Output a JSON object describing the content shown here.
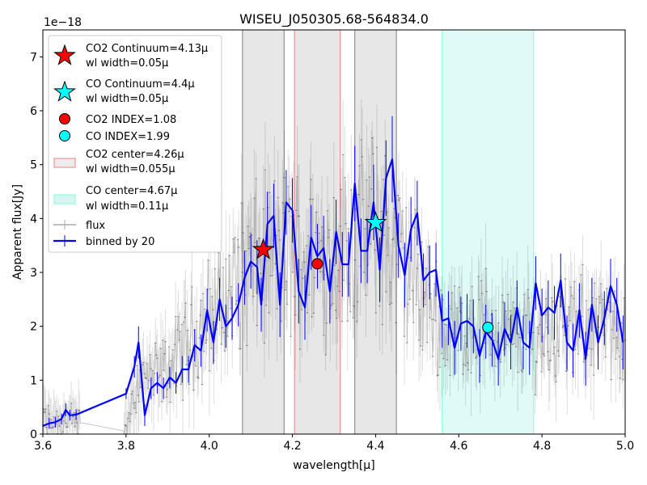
{
  "chart_data": {
    "type": "line",
    "title": "WISEU_J050305.68-564834.0",
    "xlabel": "wavelength[μ]",
    "ylabel": "Apparent flux[Jy]",
    "y_multiplier": "1e−18",
    "xlim": [
      3.6,
      5.0
    ],
    "ylim": [
      0,
      7.5
    ],
    "xticks": [
      "3.6",
      "3.8",
      "4.0",
      "4.2",
      "4.4",
      "4.6",
      "4.8",
      "5.0"
    ],
    "yticks": [
      "0",
      "1",
      "2",
      "3",
      "4",
      "5",
      "6",
      "7"
    ],
    "grid": false,
    "legend_position": "upper-left",
    "bands": [
      {
        "name": "CO2 continuum region 1",
        "x0": 4.08,
        "x1": 4.18,
        "color": "#808080"
      },
      {
        "name": "CO2 center",
        "x0": 4.205,
        "x1": 4.315,
        "color": "#f08080"
      },
      {
        "name": "CO continuum region",
        "x0": 4.35,
        "x1": 4.45,
        "color": "#808080"
      },
      {
        "name": "CO center",
        "x0": 4.56,
        "x1": 4.78,
        "color": "#7fffd4"
      }
    ],
    "markers": [
      {
        "label": "CO2 Continuum=4.13μ",
        "label2": "wl width=0.05μ",
        "shape": "star",
        "color": "#ff0000",
        "x": 4.13,
        "y": 3.42
      },
      {
        "label": "CO Continuum=4.4μ",
        "label2": "wl width=0.05μ",
        "shape": "star",
        "color": "#00ffff",
        "x": 4.4,
        "y": 3.92
      },
      {
        "label": "CO2 INDEX=1.08",
        "shape": "circle",
        "color": "#ff0000",
        "x": 4.26,
        "y": 3.16
      },
      {
        "label": "CO  INDEX=1.99",
        "shape": "circle",
        "color": "#00ffff",
        "x": 4.67,
        "y": 1.98
      }
    ],
    "legend_patches": [
      {
        "label": "CO2 center=4.26μ",
        "label2": "wl width=0.055μ",
        "color": "#f08080"
      },
      {
        "label": "CO center=4.67μ",
        "label2": "wl width=0.11μ",
        "color": "#7fffd4"
      }
    ],
    "series": [
      {
        "name": "flux",
        "color": "#808080",
        "style": "errorbar-line",
        "envelope": [
          [
            3.6,
            0.25
          ],
          [
            3.7,
            0.2
          ],
          [
            3.8,
            0.05
          ],
          [
            3.82,
            0.9
          ],
          [
            3.84,
            1.1
          ],
          [
            3.86,
            1.0
          ],
          [
            3.9,
            1.2
          ],
          [
            3.95,
            1.7
          ],
          [
            4.0,
            2.2
          ],
          [
            4.05,
            2.6
          ],
          [
            4.08,
            3.0
          ],
          [
            4.12,
            3.2
          ],
          [
            4.16,
            3.3
          ],
          [
            4.2,
            3.3
          ],
          [
            4.24,
            3.4
          ],
          [
            4.28,
            3.2
          ],
          [
            4.32,
            3.6
          ],
          [
            4.36,
            3.6
          ],
          [
            4.4,
            3.9
          ],
          [
            4.44,
            3.4
          ],
          [
            4.48,
            3.0
          ],
          [
            4.52,
            2.5
          ],
          [
            4.56,
            2.0
          ],
          [
            4.6,
            1.9
          ],
          [
            4.64,
            2.0
          ],
          [
            4.68,
            2.1
          ],
          [
            4.72,
            1.8
          ],
          [
            4.76,
            1.9
          ],
          [
            4.8,
            1.8
          ],
          [
            4.84,
            2.0
          ],
          [
            4.88,
            1.9
          ],
          [
            4.92,
            2.2
          ],
          [
            4.96,
            1.8
          ],
          [
            5.0,
            2.0
          ]
        ]
      },
      {
        "name": "binned by 20",
        "color": "#0000ff",
        "style": "line-errorbar",
        "points": [
          [
            3.6,
            0.15,
            0.1
          ],
          [
            3.615,
            0.2,
            0.1
          ],
          [
            3.63,
            0.22,
            0.1
          ],
          [
            3.645,
            0.28,
            0.1
          ],
          [
            3.655,
            0.45,
            0.12
          ],
          [
            3.665,
            0.35,
            0.1
          ],
          [
            3.68,
            0.36,
            0.1
          ],
          [
            3.8,
            0.75,
            0.1
          ],
          [
            3.82,
            1.25,
            0.2
          ],
          [
            3.83,
            1.7,
            0.3
          ],
          [
            3.845,
            0.35,
            0.2
          ],
          [
            3.86,
            0.85,
            0.2
          ],
          [
            3.875,
            0.95,
            0.2
          ],
          [
            3.89,
            0.85,
            0.2
          ],
          [
            3.905,
            1.05,
            0.2
          ],
          [
            3.92,
            0.95,
            0.2
          ],
          [
            3.935,
            1.2,
            0.25
          ],
          [
            3.95,
            1.2,
            0.25
          ],
          [
            3.965,
            1.65,
            0.3
          ],
          [
            3.98,
            1.55,
            0.3
          ],
          [
            3.995,
            2.3,
            0.4
          ],
          [
            4.01,
            1.7,
            0.4
          ],
          [
            4.025,
            2.5,
            0.4
          ],
          [
            4.04,
            2.0,
            0.4
          ],
          [
            4.055,
            2.15,
            0.4
          ],
          [
            4.07,
            2.4,
            0.4
          ],
          [
            4.085,
            2.9,
            0.5
          ],
          [
            4.1,
            3.2,
            0.5
          ],
          [
            4.115,
            3.1,
            0.5
          ],
          [
            4.125,
            2.4,
            0.5
          ],
          [
            4.14,
            3.9,
            0.6
          ],
          [
            4.155,
            4.05,
            0.6
          ],
          [
            4.17,
            2.4,
            0.6
          ],
          [
            4.185,
            4.3,
            0.6
          ],
          [
            4.2,
            4.15,
            0.6
          ],
          [
            4.215,
            2.65,
            0.6
          ],
          [
            4.23,
            2.35,
            0.6
          ],
          [
            4.245,
            3.65,
            0.6
          ],
          [
            4.26,
            3.3,
            0.6
          ],
          [
            4.275,
            3.45,
            0.6
          ],
          [
            4.29,
            2.65,
            0.6
          ],
          [
            4.305,
            3.75,
            0.6
          ],
          [
            4.32,
            3.15,
            0.6
          ],
          [
            4.335,
            3.15,
            0.6
          ],
          [
            4.35,
            4.65,
            0.7
          ],
          [
            4.365,
            3.4,
            0.6
          ],
          [
            4.38,
            3.4,
            0.6
          ],
          [
            4.395,
            4.3,
            0.7
          ],
          [
            4.41,
            3.05,
            0.6
          ],
          [
            4.425,
            4.75,
            0.7
          ],
          [
            4.44,
            5.1,
            0.8
          ],
          [
            4.455,
            3.5,
            0.6
          ],
          [
            4.47,
            2.95,
            0.6
          ],
          [
            4.485,
            3.8,
            0.6
          ],
          [
            4.5,
            4.1,
            0.6
          ],
          [
            4.515,
            2.85,
            0.5
          ],
          [
            4.53,
            3.0,
            0.5
          ],
          [
            4.545,
            3.05,
            0.5
          ],
          [
            4.56,
            2.1,
            0.5
          ],
          [
            4.575,
            2.15,
            0.5
          ],
          [
            4.59,
            1.6,
            0.5
          ],
          [
            4.605,
            2.05,
            0.5
          ],
          [
            4.62,
            2.1,
            0.5
          ],
          [
            4.635,
            2.0,
            0.5
          ],
          [
            4.65,
            1.45,
            0.5
          ],
          [
            4.665,
            1.9,
            0.5
          ],
          [
            4.68,
            1.75,
            0.5
          ],
          [
            4.695,
            1.4,
            0.5
          ],
          [
            4.71,
            1.95,
            0.5
          ],
          [
            4.725,
            1.7,
            0.5
          ],
          [
            4.74,
            2.35,
            0.5
          ],
          [
            4.755,
            1.7,
            0.5
          ],
          [
            4.77,
            1.6,
            0.5
          ],
          [
            4.785,
            2.8,
            0.5
          ],
          [
            4.8,
            2.2,
            0.5
          ],
          [
            4.815,
            2.35,
            0.5
          ],
          [
            4.83,
            2.25,
            0.5
          ],
          [
            4.845,
            2.85,
            0.5
          ],
          [
            4.86,
            1.7,
            0.5
          ],
          [
            4.875,
            1.55,
            0.5
          ],
          [
            4.89,
            2.3,
            0.5
          ],
          [
            4.905,
            1.4,
            0.5
          ],
          [
            4.92,
            2.4,
            0.5
          ],
          [
            4.935,
            1.7,
            0.5
          ],
          [
            4.95,
            2.15,
            0.5
          ],
          [
            4.965,
            2.75,
            0.5
          ],
          [
            4.98,
            2.4,
            0.5
          ],
          [
            4.995,
            1.7,
            0.5
          ]
        ]
      }
    ],
    "legend_series": [
      {
        "label": "flux",
        "color": "#c0c0c0"
      },
      {
        "label": "binned by 20",
        "color": "#0000ff"
      }
    ]
  }
}
